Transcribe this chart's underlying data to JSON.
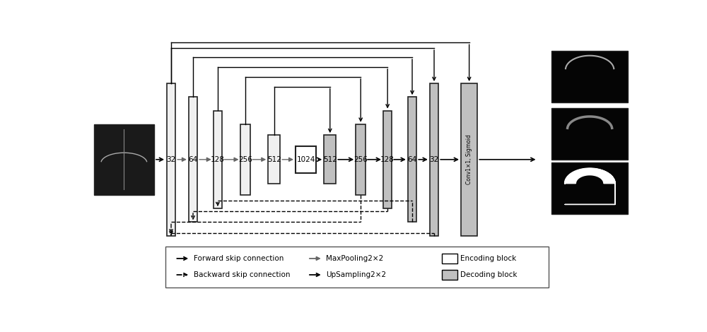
{
  "fig_width": 10.0,
  "fig_height": 4.7,
  "bg_color": "#ffffff",
  "encoder_labels": [
    "32",
    "64",
    "128",
    "256",
    "512"
  ],
  "bottleneck_label": "1024",
  "decoder_labels": [
    "512",
    "256",
    "128",
    "64",
    "32"
  ],
  "conv_label": "Conv1×1, Sigmoid",
  "encoding_color": "#f0f0f0",
  "decoding_color": "#c0c0c0",
  "bottleneck_color": "#ffffff",
  "border_color": "#222222",
  "legend_fwd_label": "Forward skip connection",
  "legend_bwd_label": "Backward skip connection",
  "legend_maxpool_label": "MaxPooling2×2",
  "legend_upsample_label": "UpSampling2×2",
  "legend_enc_label": "Encoding block",
  "legend_dec_label": "Decoding block"
}
